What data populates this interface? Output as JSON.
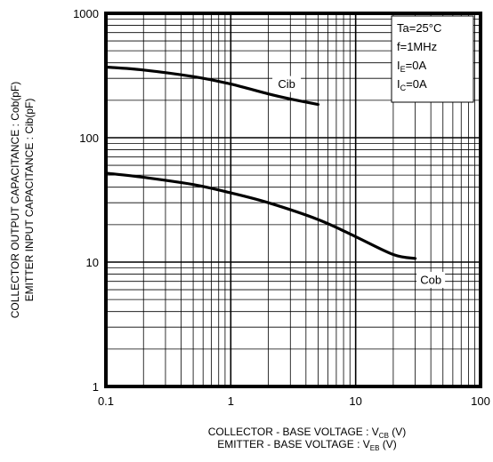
{
  "chart_data": {
    "type": "line",
    "x_scale": "log",
    "y_scale": "log",
    "xlim": [
      0.1,
      100
    ],
    "ylim": [
      1,
      1000
    ],
    "grid": true,
    "x_ticks": [
      "0.1",
      "1",
      "10",
      "100"
    ],
    "y_ticks": [
      "1",
      "10",
      "100",
      "1000"
    ],
    "xlabel_line1": {
      "main": "COLLECTOR - BASE VOLTAGE  : V",
      "sub": "CB",
      "unit": " (V)"
    },
    "xlabel_line2": {
      "main": "EMITTER - BASE VOLTAGE : V",
      "sub": "EB",
      "unit": " (V)"
    },
    "ylabel_line1": "COLLECTOR  OUTPUT CAPACITANCE  : Cob(pF)",
    "ylabel_line2": "EMITTER INPUT CAPACITANCE  : Cib(pF)",
    "conditions": [
      {
        "main": "Ta=25°C",
        "sub": "",
        "rest": ""
      },
      {
        "main": "f=1MHz",
        "sub": "",
        "rest": ""
      },
      {
        "main": "I",
        "sub": "E",
        "rest": "=0A"
      },
      {
        "main": "I",
        "sub": "C",
        "rest": "=0A"
      }
    ],
    "series": [
      {
        "name": "Cib",
        "x": [
          0.1,
          0.2,
          0.5,
          1,
          2,
          3,
          5
        ],
        "y": [
          370,
          350,
          310,
          270,
          225,
          205,
          185
        ]
      },
      {
        "name": "Cob",
        "x": [
          0.1,
          0.2,
          0.5,
          1,
          2,
          5,
          10,
          20,
          30
        ],
        "y": [
          52,
          48,
          42,
          36,
          30,
          22,
          16,
          11.5,
          10.7
        ]
      }
    ]
  }
}
